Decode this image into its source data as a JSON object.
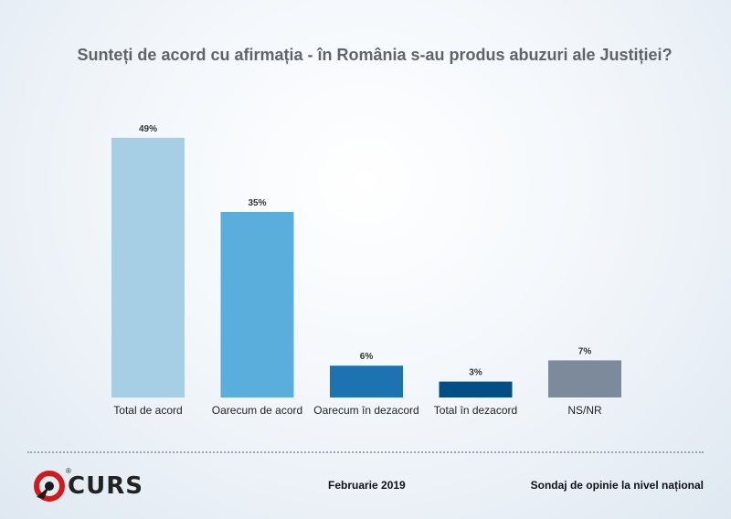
{
  "chart_data": {
    "type": "bar",
    "title": "Sunteți de acord cu afirmația - în România s-au produs abuzuri ale Justiției?",
    "categories": [
      "Total de acord",
      "Oarecum de acord",
      "Oarecum în dezacord",
      "Total în dezacord",
      "NS/NR"
    ],
    "values": [
      49,
      35,
      6,
      3,
      7
    ],
    "value_labels": [
      "49%",
      "35%",
      "6%",
      "3%",
      "7%"
    ],
    "colors": [
      "#a6cfe6",
      "#5aaedc",
      "#1d72b0",
      "#034f85",
      "#7d8a9b"
    ],
    "ylim": [
      0,
      55
    ],
    "grid": false,
    "legend": "none"
  },
  "footer": {
    "logo_text": "CURS",
    "logo_mark": "®",
    "date": "Februarie 2019",
    "note": "Sondaj de opinie la nivel național"
  }
}
